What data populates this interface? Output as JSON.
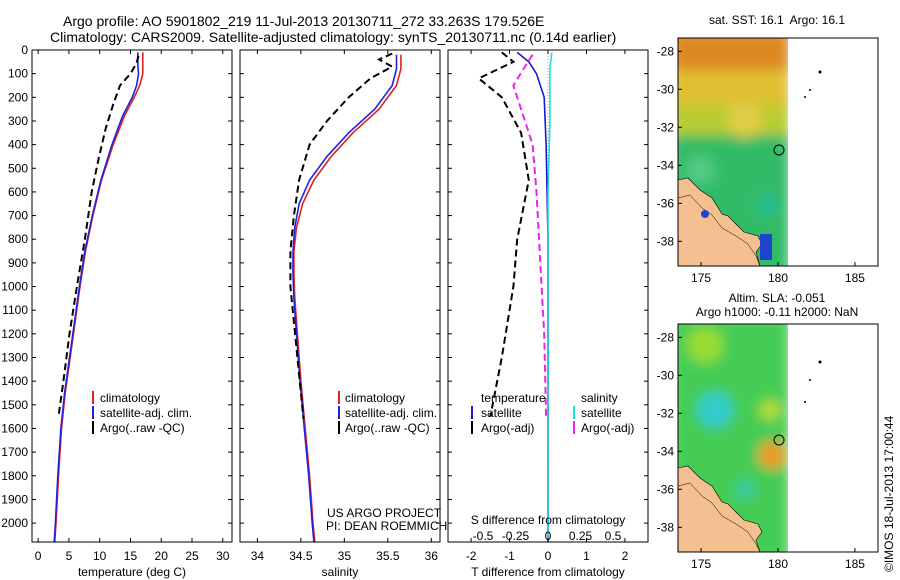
{
  "header": {
    "line1": "Argo profile: AO 5901802_219 11-Jul-2013 20130711_272 33.263S 179.526E",
    "line2": "Climatology: CARS2009. Satellite-adjusted climatology: synTS_20130711.nc (0.14d earlier)"
  },
  "colors": {
    "climatology": "#dd2222",
    "satellite": "#2222dd",
    "argo": "#000000",
    "t_satellite": "#1a1acc",
    "s_satellite": "#22dddd",
    "s_argo": "#ee22ee",
    "land": "#f5c08f"
  },
  "chart_data": [
    {
      "id": "temperature",
      "type": "line",
      "xlabel": "temperature (deg C)",
      "ylabel": "",
      "xlim": [
        -1,
        31.5
      ],
      "ylim": [
        2080,
        0
      ],
      "xticks": [
        0,
        5,
        10,
        15,
        20,
        25,
        30
      ],
      "yticks": [
        0,
        100,
        200,
        300,
        400,
        500,
        600,
        700,
        800,
        900,
        1000,
        1100,
        1200,
        1300,
        1400,
        1500,
        1600,
        1700,
        1800,
        1900,
        2000
      ],
      "legend": [
        "climatology",
        "satellite-adj. clim.",
        "Argo(..raw -QC)"
      ],
      "series": [
        {
          "name": "climatology",
          "style": "solid",
          "color": "#dd2222",
          "points": [
            [
              17,
              10
            ],
            [
              17,
              60
            ],
            [
              17,
              100
            ],
            [
              16.5,
              150
            ],
            [
              15.6,
              200
            ],
            [
              14,
              280
            ],
            [
              12.2,
              400
            ],
            [
              10.3,
              550
            ],
            [
              8.9,
              700
            ],
            [
              7.7,
              850
            ],
            [
              6.8,
              1000
            ],
            [
              6,
              1150
            ],
            [
              5.2,
              1300
            ],
            [
              4.4,
              1450
            ],
            [
              3.8,
              1600
            ],
            [
              3.3,
              1800
            ],
            [
              2.9,
              2000
            ],
            [
              2.7,
              2080
            ]
          ]
        },
        {
          "name": "satellite-adj. clim.",
          "style": "solid",
          "color": "#2222dd",
          "points": [
            [
              16.2,
              10
            ],
            [
              16.2,
              60
            ],
            [
              16.3,
              100
            ],
            [
              16,
              150
            ],
            [
              15.3,
              200
            ],
            [
              13.7,
              280
            ],
            [
              12,
              400
            ],
            [
              10.2,
              550
            ],
            [
              8.8,
              700
            ],
            [
              7.6,
              850
            ],
            [
              6.7,
              1000
            ],
            [
              5.9,
              1150
            ],
            [
              5.1,
              1300
            ],
            [
              4.3,
              1450
            ],
            [
              3.7,
              1600
            ],
            [
              3.2,
              1800
            ],
            [
              2.8,
              2000
            ],
            [
              2.6,
              2080
            ]
          ]
        },
        {
          "name": "Argo(..raw -QC)",
          "style": "dashed",
          "color": "#000000",
          "points": [
            [
              16.3,
              25
            ],
            [
              16,
              55
            ],
            [
              15,
              100
            ],
            [
              13.3,
              150
            ],
            [
              12.2,
              230
            ],
            [
              11,
              330
            ],
            [
              9.9,
              450
            ],
            [
              8.7,
              600
            ],
            [
              7.6,
              800
            ],
            [
              6.3,
              1000
            ],
            [
              5.1,
              1200
            ],
            [
              4.1,
              1400
            ],
            [
              3.3,
              1550
            ]
          ]
        }
      ]
    },
    {
      "id": "salinity",
      "type": "line",
      "xlabel": "salinity",
      "ylabel": "",
      "xlim": [
        33.8,
        36.1
      ],
      "ylim": [
        2080,
        0
      ],
      "xticks": [
        34,
        34.5,
        35,
        35.5,
        36
      ],
      "legend": [
        "climatology",
        "satellite-adj. clim.",
        "Argo(..raw -QC)"
      ],
      "series": [
        {
          "name": "climatology",
          "style": "solid",
          "color": "#dd2222",
          "points": [
            [
              35.65,
              20
            ],
            [
              35.65,
              80
            ],
            [
              35.6,
              150
            ],
            [
              35.4,
              250
            ],
            [
              35.1,
              350
            ],
            [
              34.85,
              450
            ],
            [
              34.65,
              550
            ],
            [
              34.52,
              650
            ],
            [
              34.45,
              750
            ],
            [
              34.42,
              850
            ],
            [
              34.42,
              950
            ],
            [
              34.43,
              1050
            ],
            [
              34.46,
              1200
            ],
            [
              34.5,
              1400
            ],
            [
              34.55,
              1600
            ],
            [
              34.6,
              1800
            ],
            [
              34.64,
              2000
            ],
            [
              34.66,
              2080
            ]
          ]
        },
        {
          "name": "satellite-adj. clim.",
          "style": "solid",
          "color": "#2222dd",
          "points": [
            [
              35.6,
              20
            ],
            [
              35.6,
              80
            ],
            [
              35.55,
              150
            ],
            [
              35.35,
              250
            ],
            [
              35.05,
              350
            ],
            [
              34.8,
              450
            ],
            [
              34.6,
              550
            ],
            [
              34.48,
              650
            ],
            [
              34.43,
              750
            ],
            [
              34.41,
              850
            ],
            [
              34.41,
              950
            ],
            [
              34.42,
              1050
            ],
            [
              34.45,
              1200
            ],
            [
              34.49,
              1400
            ],
            [
              34.54,
              1600
            ],
            [
              34.59,
              1800
            ],
            [
              34.63,
              2000
            ],
            [
              34.65,
              2080
            ]
          ]
        },
        {
          "name": "Argo(..raw -QC)",
          "style": "dashed",
          "color": "#000000",
          "points": [
            [
              35.55,
              15
            ],
            [
              35.4,
              40
            ],
            [
              35.55,
              70
            ],
            [
              35.3,
              120
            ],
            [
              35.05,
              200
            ],
            [
              34.8,
              300
            ],
            [
              34.6,
              400
            ],
            [
              34.48,
              550
            ],
            [
              34.42,
              700
            ],
            [
              34.38,
              850
            ],
            [
              34.38,
              1000
            ],
            [
              34.42,
              1150
            ],
            [
              34.46,
              1300
            ],
            [
              34.5,
              1450
            ],
            [
              34.53,
              1560
            ]
          ]
        }
      ]
    },
    {
      "id": "difference",
      "type": "line",
      "xlabel": "T difference from climatology",
      "xlabel_top": "S difference from climatology",
      "ylabel": "",
      "xlim": [
        -2.6,
        2.6
      ],
      "ylim": [
        2080,
        0
      ],
      "xticks": [
        -2,
        -1,
        0,
        1,
        2
      ],
      "xtick_labels": [
        "-2",
        "-1",
        "0",
        "1",
        "2"
      ],
      "sticks": [
        -0.5,
        -0.25,
        0,
        0.25,
        0.5
      ],
      "stick_labels": [
        "-0.5",
        "-0.25",
        "0",
        "0.25",
        "0.5"
      ],
      "legend_headers": [
        "temperature",
        "salinity"
      ],
      "legend": [
        "satellite",
        "Argo(-adj)",
        "satellite",
        "Argo(-adj)"
      ],
      "series": [
        {
          "name": "satellite",
          "style": "solid",
          "color": "#1a1acc",
          "points": [
            [
              -0.8,
              10
            ],
            [
              -0.5,
              50
            ],
            [
              -0.3,
              100
            ],
            [
              -0.1,
              200
            ],
            [
              -0.05,
              400
            ],
            [
              0,
              800
            ],
            [
              0,
              2080
            ]
          ]
        },
        {
          "name": "Argo(-adj)",
          "style": "dashed",
          "color": "#000000",
          "points": [
            [
              -1.2,
              10
            ],
            [
              -0.9,
              50
            ],
            [
              -1.8,
              120
            ],
            [
              -1.2,
              200
            ],
            [
              -0.7,
              350
            ],
            [
              -0.5,
              550
            ],
            [
              -0.8,
              800
            ],
            [
              -0.9,
              1000
            ],
            [
              -1.2,
              1300
            ],
            [
              -1.5,
              1550
            ]
          ]
        },
        {
          "name": "satellite",
          "style": "solid",
          "color": "#22dddd",
          "points": [
            [
              0.1,
              10
            ],
            [
              0.05,
              80
            ],
            [
              0.05,
              300
            ],
            [
              0,
              600
            ],
            [
              0,
              2080
            ]
          ]
        },
        {
          "name": "Argo(-adj)",
          "style": "dashed",
          "color": "#ee22ee",
          "points": [
            [
              -0.4,
              20
            ],
            [
              -0.6,
              70
            ],
            [
              -0.9,
              150
            ],
            [
              -0.7,
              250
            ],
            [
              -0.4,
              400
            ],
            [
              -0.3,
              600
            ],
            [
              -0.2,
              900
            ],
            [
              -0.1,
              1200
            ],
            [
              -0.05,
              1550
            ]
          ]
        }
      ]
    }
  ],
  "maps": [
    {
      "id": "sst-map",
      "title": "sat. SST: 16.1  Argo: 16.1",
      "xticks": [
        175,
        180,
        185
      ],
      "yticks": [
        -28,
        -30,
        -32,
        -34,
        -36,
        -38
      ],
      "xlim": [
        173.5,
        186.5
      ],
      "ylim": [
        -39.3,
        -27.3
      ]
    },
    {
      "id": "sla-map",
      "title_line1": "Altim. SLA: -0.051",
      "title_line2": "Argo h1000: -0.11 h2000: NaN",
      "xticks": [
        175,
        180,
        185
      ],
      "yticks": [
        -28,
        -30,
        -32,
        -34,
        -36,
        -38
      ],
      "xlim": [
        173.5,
        186.5
      ],
      "ylim": [
        -39.3,
        -27.3
      ]
    }
  ],
  "annotation": {
    "project_line1": "US ARGO PROJECT",
    "project_line2": "PI: DEAN ROEMMICH"
  },
  "footer": {
    "stamp": "©IMOS 18-Jul-2013 17:00:44"
  }
}
